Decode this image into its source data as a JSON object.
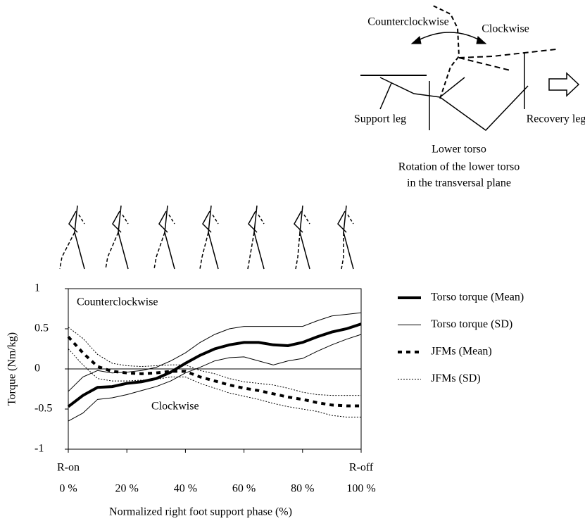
{
  "diagram": {
    "counterclockwise": "Counterclockwise",
    "clockwise": "Clockwise",
    "support_leg": "Support leg",
    "recovery_leg": "Recovery leg",
    "lower_torso": "Lower torso",
    "caption_line1": "Rotation of the lower torso",
    "caption_line2": "in the transversal plane"
  },
  "chart_data": {
    "type": "line",
    "xlabel": "Normalized right foot support phase (%)",
    "ylabel": "Torque (Nm/kg)",
    "x": [
      0,
      5,
      10,
      15,
      20,
      25,
      30,
      35,
      40,
      45,
      50,
      55,
      60,
      65,
      70,
      75,
      80,
      85,
      90,
      95,
      100
    ],
    "xlim": [
      0,
      100
    ],
    "xticks": [
      {
        "value": 0,
        "label": "0 %"
      },
      {
        "value": 20,
        "label": "20 %"
      },
      {
        "value": 40,
        "label": "40 %"
      },
      {
        "value": 60,
        "label": "60 %"
      },
      {
        "value": 80,
        "label": "80 %"
      },
      {
        "value": 100,
        "label": "100 %"
      }
    ],
    "ylim": [
      -1,
      1
    ],
    "yticks": [
      1,
      0.5,
      0,
      -0.5,
      -1
    ],
    "annotations": {
      "start": "R-on",
      "end": "R-off",
      "upper_region": "Counterclockwise",
      "lower_region": "Clockwise"
    },
    "series": [
      {
        "name": "Torso torque (Mean)",
        "color": "#000000",
        "width": 4,
        "dash": "none",
        "values": [
          -0.47,
          -0.33,
          -0.23,
          -0.22,
          -0.18,
          -0.16,
          -0.12,
          -0.04,
          0.07,
          0.17,
          0.25,
          0.3,
          0.33,
          0.33,
          0.3,
          0.29,
          0.33,
          0.4,
          0.46,
          0.5,
          0.56
        ]
      },
      {
        "name": "Torso torque (SD)",
        "color": "#000000",
        "width": 1,
        "dash": "none",
        "values": [
          -0.28,
          -0.1,
          -0.02,
          -0.05,
          -0.04,
          -0.02,
          0.02,
          0.1,
          0.2,
          0.33,
          0.43,
          0.5,
          0.53,
          0.53,
          0.53,
          0.53,
          0.53,
          0.6,
          0.66,
          0.68,
          0.7
        ],
        "values_lower": [
          -0.65,
          -0.55,
          -0.38,
          -0.36,
          -0.32,
          -0.27,
          -0.22,
          -0.15,
          -0.05,
          0.02,
          0.1,
          0.14,
          0.15,
          0.1,
          0.05,
          0.1,
          0.13,
          0.22,
          0.3,
          0.37,
          0.43
        ]
      },
      {
        "name": "JFMs (Mean)",
        "color": "#000000",
        "width": 4,
        "dash": "6 6",
        "values": [
          0.4,
          0.2,
          0.03,
          -0.03,
          -0.05,
          -0.06,
          -0.05,
          -0.03,
          -0.03,
          -0.1,
          -0.15,
          -0.2,
          -0.24,
          -0.27,
          -0.31,
          -0.35,
          -0.38,
          -0.42,
          -0.45,
          -0.46,
          -0.46
        ]
      },
      {
        "name": "JFMs (SD)",
        "color": "#000000",
        "width": 1,
        "dash": "2 2",
        "values": [
          0.52,
          0.38,
          0.18,
          0.07,
          0.04,
          0.03,
          0.04,
          0.05,
          0.05,
          -0.02,
          -0.06,
          -0.12,
          -0.16,
          -0.18,
          -0.2,
          -0.24,
          -0.29,
          -0.32,
          -0.33,
          -0.33,
          -0.33
        ],
        "values_lower": [
          0.25,
          0.05,
          -0.12,
          -0.15,
          -0.15,
          -0.14,
          -0.13,
          -0.1,
          -0.1,
          -0.18,
          -0.24,
          -0.3,
          -0.34,
          -0.38,
          -0.43,
          -0.47,
          -0.5,
          -0.53,
          -0.58,
          -0.6,
          -0.6
        ]
      }
    ]
  }
}
